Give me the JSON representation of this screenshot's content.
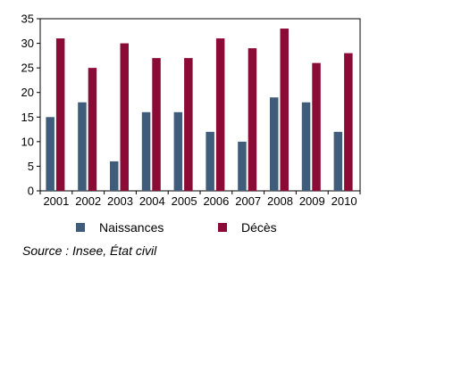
{
  "chart_data": {
    "type": "bar",
    "categories": [
      "2001",
      "2002",
      "2003",
      "2004",
      "2005",
      "2006",
      "2007",
      "2008",
      "2009",
      "2010"
    ],
    "series": [
      {
        "name": "Naissances",
        "color": "#3f5c7a",
        "values": [
          15,
          18,
          6,
          16,
          16,
          12,
          10,
          19,
          18,
          12
        ]
      },
      {
        "name": "Décès",
        "color": "#8c0b36",
        "values": [
          31,
          25,
          30,
          27,
          27,
          31,
          29,
          33,
          26,
          28
        ]
      }
    ],
    "ylim": [
      0,
      35
    ],
    "yticks": [
      0,
      5,
      10,
      15,
      20,
      25,
      30,
      35
    ],
    "grid": false,
    "legend_position": "bottom"
  },
  "source": "Source : Insee, État civil"
}
